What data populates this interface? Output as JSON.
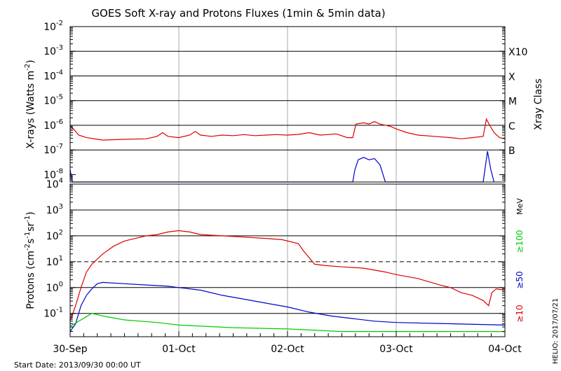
{
  "chart_data": {
    "type": "line",
    "title": "GOES Soft X-ray and Protons Fluxes   (1min & 5min data)",
    "footer_left": "Start Date: 2013/09/30 00:00 UT",
    "footer_right": "HELIO: 2017/07/21",
    "x_ticks": [
      "30-Sep",
      "01-Oct",
      "02-Oct",
      "03-Oct",
      "04-Oct"
    ],
    "x_range_days": [
      0,
      4
    ],
    "panels": [
      {
        "id": "xray",
        "ylabel": "X-rays (Watts m",
        "ylabel_sup": "-2",
        "ylabel_end": ")",
        "scale": "log",
        "ylim_exp": [
          -8.3,
          -2
        ],
        "tick_exps": [
          -8,
          -7,
          -6,
          -5,
          -4,
          -3,
          -2
        ],
        "hlines": [
          -7,
          -6,
          -5,
          -4,
          -3
        ],
        "right_title": "Xray Class",
        "class_labels": [
          {
            "label": "B",
            "exp": -7
          },
          {
            "label": "C",
            "exp": -6
          },
          {
            "label": "M",
            "exp": -5
          },
          {
            "label": "X",
            "exp": -4
          },
          {
            "label": "X10",
            "exp": -3
          }
        ],
        "series": [
          {
            "color": "#dd0000",
            "points": [
              [
                0,
                -6.0
              ],
              [
                0.03,
                -6.15
              ],
              [
                0.08,
                -6.4
              ],
              [
                0.15,
                -6.5
              ],
              [
                0.3,
                -6.6
              ],
              [
                0.5,
                -6.57
              ],
              [
                0.7,
                -6.55
              ],
              [
                0.8,
                -6.45
              ],
              [
                0.85,
                -6.3
              ],
              [
                0.9,
                -6.45
              ],
              [
                1.0,
                -6.5
              ],
              [
                1.1,
                -6.4
              ],
              [
                1.15,
                -6.25
              ],
              [
                1.2,
                -6.4
              ],
              [
                1.3,
                -6.45
              ],
              [
                1.4,
                -6.4
              ],
              [
                1.5,
                -6.42
              ],
              [
                1.6,
                -6.38
              ],
              [
                1.7,
                -6.42
              ],
              [
                1.8,
                -6.4
              ],
              [
                1.9,
                -6.38
              ],
              [
                2.0,
                -6.4
              ],
              [
                2.1,
                -6.37
              ],
              [
                2.2,
                -6.3
              ],
              [
                2.3,
                -6.4
              ],
              [
                2.45,
                -6.35
              ],
              [
                2.55,
                -6.5
              ],
              [
                2.6,
                -6.5
              ],
              [
                2.63,
                -5.95
              ],
              [
                2.7,
                -5.9
              ],
              [
                2.75,
                -5.95
              ],
              [
                2.8,
                -5.85
              ],
              [
                2.85,
                -5.95
              ],
              [
                2.95,
                -6.05
              ],
              [
                3.0,
                -6.15
              ],
              [
                3.1,
                -6.3
              ],
              [
                3.2,
                -6.4
              ],
              [
                3.35,
                -6.45
              ],
              [
                3.5,
                -6.5
              ],
              [
                3.6,
                -6.55
              ],
              [
                3.7,
                -6.5
              ],
              [
                3.8,
                -6.45
              ],
              [
                3.83,
                -5.75
              ],
              [
                3.86,
                -6.0
              ],
              [
                3.9,
                -6.3
              ],
              [
                3.95,
                -6.5
              ],
              [
                4.0,
                -6.55
              ]
            ]
          },
          {
            "color": "#0000cc",
            "points": [
              [
                0,
                -7.8
              ],
              [
                0.02,
                -8.3
              ],
              [
                2.6,
                -8.3
              ],
              [
                2.62,
                -7.8
              ],
              [
                2.65,
                -7.4
              ],
              [
                2.7,
                -7.3
              ],
              [
                2.75,
                -7.4
              ],
              [
                2.8,
                -7.35
              ],
              [
                2.85,
                -7.6
              ],
              [
                2.9,
                -8.3
              ],
              [
                3.8,
                -8.3
              ],
              [
                3.84,
                -7.05
              ],
              [
                3.87,
                -7.8
              ],
              [
                3.9,
                -8.3
              ]
            ]
          }
        ]
      },
      {
        "id": "protons",
        "ylabel": "Protons (cm",
        "ylabel_sup": "-2",
        "ylabel_mid": "s",
        "ylabel_sup2": "-1",
        "ylabel_mid2": "sr",
        "ylabel_sup3": "-1",
        "ylabel_end": ")",
        "scale": "log",
        "ylim_exp": [
          -1.9,
          4
        ],
        "tick_exps": [
          -1,
          0,
          1,
          2,
          3,
          4
        ],
        "hlines": [
          -1,
          0,
          2,
          3
        ],
        "dashed_hlines": [
          1
        ],
        "right_unit": "MeV",
        "energy_labels": [
          {
            "label": "≥10",
            "color": "#dd0000"
          },
          {
            "label": "≥50",
            "color": "#0000cc"
          },
          {
            "label": "≥100",
            "color": "#00cc00"
          }
        ],
        "series": [
          {
            "name": "≥10",
            "color": "#dd0000",
            "points": [
              [
                0,
                -1.3
              ],
              [
                0.05,
                -0.7
              ],
              [
                0.1,
                0.0
              ],
              [
                0.15,
                0.6
              ],
              [
                0.2,
                0.9
              ],
              [
                0.3,
                1.3
              ],
              [
                0.4,
                1.6
              ],
              [
                0.5,
                1.8
              ],
              [
                0.6,
                1.9
              ],
              [
                0.7,
                2.0
              ],
              [
                0.8,
                2.05
              ],
              [
                0.9,
                2.15
              ],
              [
                1.0,
                2.2
              ],
              [
                1.1,
                2.15
              ],
              [
                1.2,
                2.05
              ],
              [
                1.4,
                2.0
              ],
              [
                1.6,
                1.95
              ],
              [
                1.8,
                1.9
              ],
              [
                1.95,
                1.85
              ],
              [
                2.1,
                1.7
              ],
              [
                2.15,
                1.4
              ],
              [
                2.25,
                0.9
              ],
              [
                2.35,
                0.85
              ],
              [
                2.5,
                0.8
              ],
              [
                2.7,
                0.75
              ],
              [
                2.9,
                0.6
              ],
              [
                3.0,
                0.5
              ],
              [
                3.2,
                0.35
              ],
              [
                3.4,
                0.1
              ],
              [
                3.5,
                0.0
              ],
              [
                3.6,
                -0.2
              ],
              [
                3.7,
                -0.3
              ],
              [
                3.8,
                -0.5
              ],
              [
                3.85,
                -0.7
              ],
              [
                3.88,
                -0.2
              ],
              [
                3.92,
                -0.05
              ],
              [
                4.0,
                -0.1
              ]
            ]
          },
          {
            "name": "≥50",
            "color": "#0000cc",
            "points": [
              [
                0,
                -1.7
              ],
              [
                0.05,
                -1.4
              ],
              [
                0.1,
                -0.7
              ],
              [
                0.15,
                -0.3
              ],
              [
                0.2,
                -0.05
              ],
              [
                0.25,
                0.15
              ],
              [
                0.3,
                0.2
              ],
              [
                0.5,
                0.15
              ],
              [
                0.7,
                0.1
              ],
              [
                0.9,
                0.05
              ],
              [
                1.0,
                0.0
              ],
              [
                1.2,
                -0.1
              ],
              [
                1.4,
                -0.3
              ],
              [
                1.6,
                -0.45
              ],
              [
                1.8,
                -0.6
              ],
              [
                2.0,
                -0.75
              ],
              [
                2.2,
                -0.95
              ],
              [
                2.4,
                -1.1
              ],
              [
                2.6,
                -1.2
              ],
              [
                2.8,
                -1.3
              ],
              [
                3.0,
                -1.35
              ],
              [
                3.5,
                -1.4
              ],
              [
                4.0,
                -1.45
              ]
            ]
          },
          {
            "name": "≥100",
            "color": "#00cc00",
            "points": [
              [
                0,
                -1.5
              ],
              [
                0.2,
                -1.0
              ],
              [
                0.3,
                -1.1
              ],
              [
                0.5,
                -1.25
              ],
              [
                0.8,
                -1.35
              ],
              [
                1.0,
                -1.45
              ],
              [
                1.5,
                -1.55
              ],
              [
                2.0,
                -1.6
              ],
              [
                2.5,
                -1.7
              ],
              [
                3.0,
                -1.7
              ],
              [
                3.5,
                -1.7
              ],
              [
                4.0,
                -1.7
              ]
            ]
          }
        ]
      }
    ]
  }
}
